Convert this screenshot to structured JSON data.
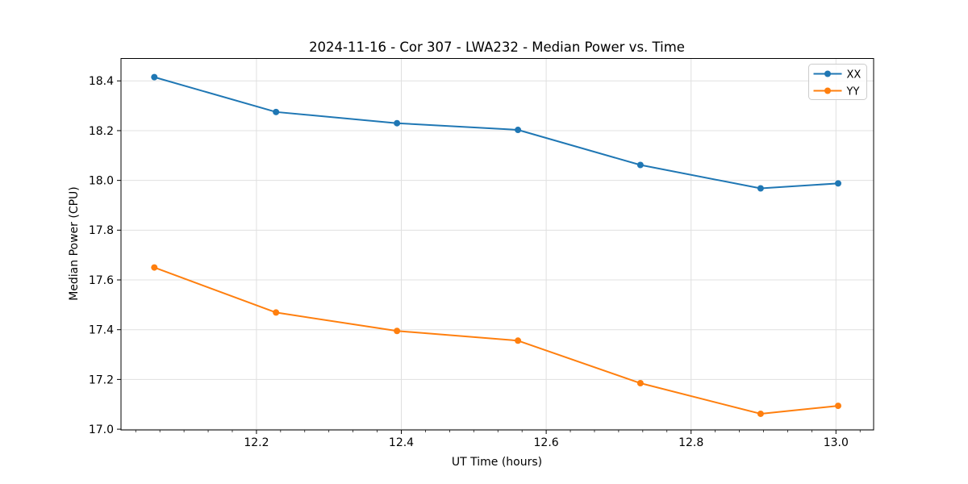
{
  "chart_data": {
    "type": "line",
    "title": "2024-11-16 - Cor 307 - LWA232 - Median Power vs. Time",
    "xlabel": "UT Time (hours)",
    "ylabel": "Median Power (CPU)",
    "x": [
      12.059,
      12.227,
      12.394,
      12.561,
      12.73,
      12.896,
      13.003
    ],
    "series": [
      {
        "name": "XX",
        "color": "#1f77b4",
        "values": [
          18.415,
          18.275,
          18.23,
          18.203,
          18.062,
          17.968,
          17.988
        ]
      },
      {
        "name": "YY",
        "color": "#ff7f0e",
        "values": [
          17.65,
          17.469,
          17.395,
          17.356,
          17.185,
          17.062,
          17.094
        ]
      }
    ],
    "xlim": [
      12.013,
      13.052
    ],
    "ylim": [
      16.997,
      18.49
    ],
    "xticks": [
      12.2,
      12.4,
      12.6,
      12.8,
      13.0
    ],
    "yticks": [
      17.0,
      17.2,
      17.4,
      17.6,
      17.8,
      18.0,
      18.2,
      18.4
    ],
    "x_minor_step": 0.0333333,
    "tick_label_decimals": 1,
    "grid": true,
    "grid_color": "#e0e0e0",
    "marker": "circle",
    "marker_radius": 4,
    "line_width": 2,
    "legend": {
      "position": "upper right",
      "entries": [
        "XX",
        "YY"
      ]
    }
  }
}
